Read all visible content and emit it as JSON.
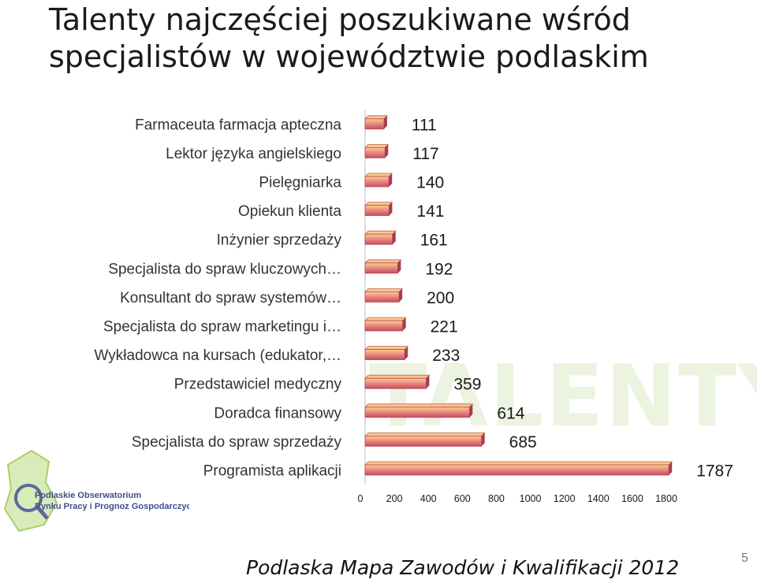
{
  "title": "Talenty najczęściej poszukiwane wśród specjalistów w województwie podlaskim",
  "footer": "Podlaska Mapa Zawodów i Kwalifikacji 2012",
  "page_number": "5",
  "logo": {
    "lines": [
      "Podlaskie Obserwatorium",
      "Rynku Pracy i Prognoz Gospodarczych"
    ]
  },
  "watermark": "TALENTY",
  "colors": {
    "bar_fill": "#e58a86",
    "bar_top": "#f6c27a",
    "bar_edge": "#c04a5a",
    "accent_green": "#8fbf2a"
  },
  "chart_data": {
    "type": "bar",
    "orientation": "horizontal",
    "categories": [
      "Farmaceuta farmacja apteczna",
      "Lektor języka angielskiego",
      "Pielęgniarka",
      "Opiekun klienta",
      "Inżynier sprzedaży",
      "Specjalista do spraw kluczowych…",
      "Konsultant do spraw systemów…",
      "Specjalista do spraw marketingu i…",
      "Wykładowca na kursach (edukator,…",
      "Przedstawiciel medyczny",
      "Doradca finansowy",
      "Specjalista do spraw sprzedaży",
      "Programista aplikacji"
    ],
    "values": [
      111,
      117,
      140,
      141,
      161,
      192,
      200,
      221,
      233,
      359,
      614,
      685,
      1787
    ],
    "x_ticks": [
      0,
      200,
      400,
      600,
      800,
      1000,
      1200,
      1400,
      1600,
      1800
    ],
    "xlim": [
      0,
      1800
    ],
    "title": "Talenty najczęściej poszukiwane wśród specjalistów w województwie podlaskim",
    "xlabel": "",
    "ylabel": "",
    "grid": false,
    "legend": "none"
  }
}
